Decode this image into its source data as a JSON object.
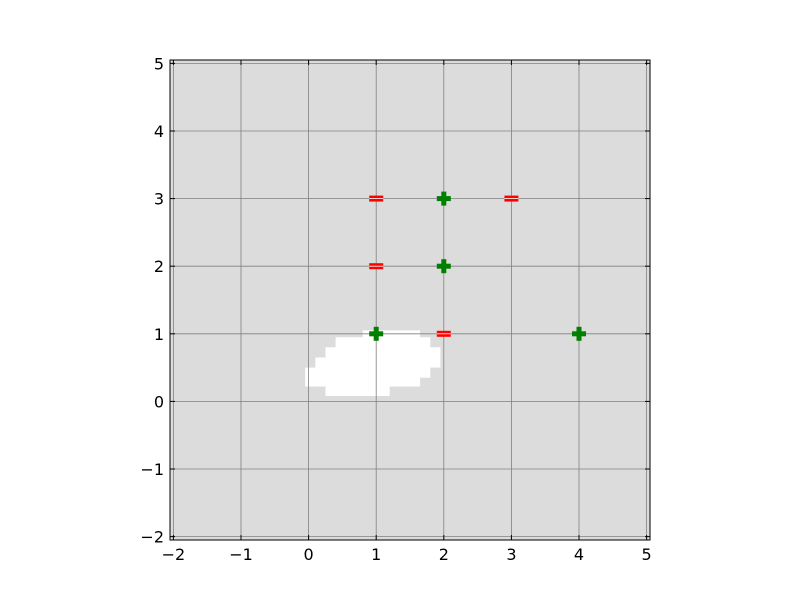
{
  "chart_data": {
    "type": "scatter",
    "title": "",
    "xlabel": "",
    "ylabel": "",
    "xlim": [
      -2.05,
      5.05
    ],
    "ylim": [
      -2.05,
      5.05
    ],
    "xticks": [
      -2,
      -1,
      0,
      1,
      2,
      3,
      4,
      5
    ],
    "yticks": [
      -2,
      -1,
      0,
      1,
      2,
      3,
      4,
      5
    ],
    "xtick_labels": [
      "−2",
      "−1",
      "0",
      "1",
      "2",
      "3",
      "4",
      "5"
    ],
    "ytick_labels": [
      "−2",
      "−1",
      "0",
      "1",
      "2",
      "3",
      "4",
      "5"
    ],
    "grid": true,
    "legend": "none",
    "colors": {
      "background": "#dcdcdc",
      "grid": "#808080",
      "positive_marker": "#007f00",
      "negative_marker": "#ff0000",
      "region": "#ffffff"
    },
    "series": [
      {
        "marker": "plus",
        "color": "#007f00",
        "points": [
          [
            2,
            3
          ],
          [
            2,
            2
          ],
          [
            1,
            1
          ],
          [
            4,
            1
          ]
        ]
      },
      {
        "marker": "minus",
        "color": "#ff0000",
        "points": [
          [
            1,
            3
          ],
          [
            3,
            3
          ],
          [
            1,
            2
          ],
          [
            2,
            1
          ]
        ]
      }
    ],
    "region": {
      "fill": "#ffffff",
      "polygon": [
        [
          0.8,
          1.05
        ],
        [
          1.65,
          1.05
        ],
        [
          1.65,
          0.95
        ],
        [
          1.8,
          0.95
        ],
        [
          1.8,
          0.8
        ],
        [
          1.95,
          0.8
        ],
        [
          1.95,
          0.5
        ],
        [
          1.8,
          0.5
        ],
        [
          1.8,
          0.35
        ],
        [
          1.65,
          0.35
        ],
        [
          1.65,
          0.22
        ],
        [
          1.2,
          0.22
        ],
        [
          1.2,
          0.08
        ],
        [
          0.25,
          0.08
        ],
        [
          0.25,
          0.22
        ],
        [
          -0.05,
          0.22
        ],
        [
          -0.05,
          0.5
        ],
        [
          0.1,
          0.5
        ],
        [
          0.1,
          0.65
        ],
        [
          0.25,
          0.65
        ],
        [
          0.25,
          0.8
        ],
        [
          0.4,
          0.8
        ],
        [
          0.4,
          0.95
        ],
        [
          0.8,
          0.95
        ]
      ]
    }
  }
}
